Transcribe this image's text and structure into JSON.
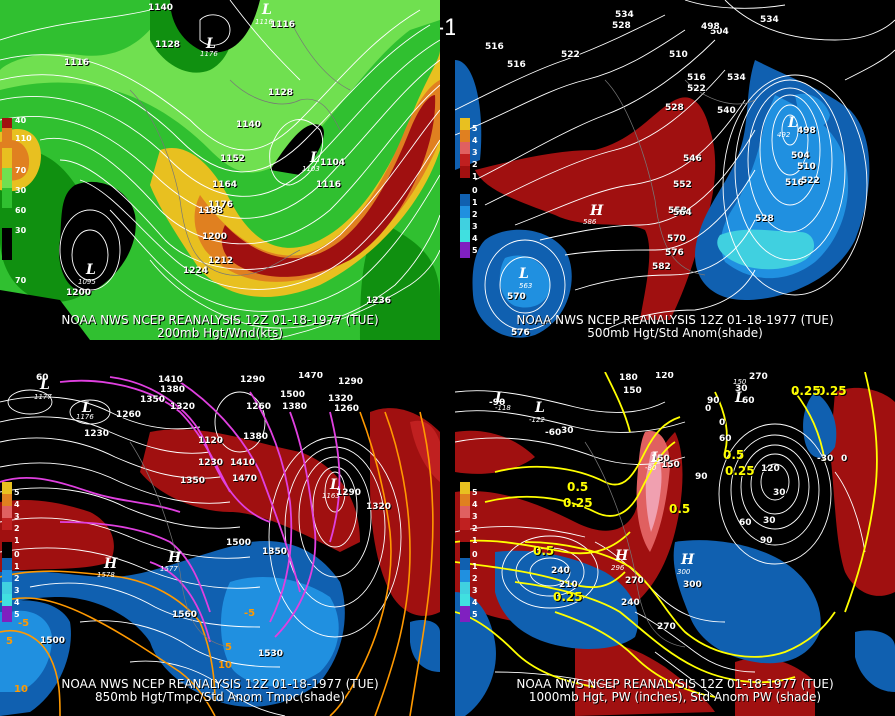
{
  "title": "12Z 01-18-1977 (TUE)",
  "colors": {
    "background": "#000000",
    "green_dark": "#109010",
    "green_mid": "#30c030",
    "green_light": "#70e050",
    "yellow": "#e8c020",
    "orange": "#e08020",
    "red": "#a01010",
    "blue_dark": "#1060b0",
    "blue_mid": "#2090e0",
    "cyan": "#40d0e0",
    "magenta_contour": "#e040e0",
    "yellow_contour": "#ffff00",
    "orange_contour": "#ff9900"
  },
  "panels": [
    {
      "id": "200mb",
      "footer_line1": "NOAA NWS NCEP REANALYSIS 12Z 01-18-1977 (TUE)",
      "footer_line2": "200mb Hgt/Wnd(kts)",
      "colorbar_labels": [
        "40",
        "110",
        "70",
        "30",
        "60",
        "30",
        "70"
      ],
      "height_labels": [
        "1140",
        "1116",
        "1128",
        "1116",
        "1128",
        "1140",
        "1152",
        "1164",
        "1176",
        "1188",
        "1200",
        "1212",
        "1224",
        "1104",
        "1116",
        "1200",
        "1236"
      ],
      "symbols": [
        {
          "type": "L",
          "value": "1116"
        },
        {
          "type": "L",
          "value": "1176"
        },
        {
          "type": "L",
          "value": "1095"
        },
        {
          "type": "L",
          "value": "1103"
        }
      ]
    },
    {
      "id": "500mb",
      "footer_line1": "NOAA NWS NCEP REANALYSIS 12Z 01-18-1977 (TUE)",
      "footer_line2": "500mb Hgt/Std Anom(shade)",
      "colorbar_labels": [
        "5",
        "4",
        "3",
        "2",
        "1",
        "0",
        "1",
        "2",
        "3",
        "4",
        "5"
      ],
      "height_labels": [
        "534",
        "528",
        "516",
        "522",
        "516",
        "534",
        "504",
        "498",
        "534",
        "510",
        "516",
        "522",
        "528",
        "540",
        "546",
        "552",
        "558",
        "564",
        "570",
        "576",
        "582",
        "498",
        "504",
        "510",
        "516",
        "522",
        "528",
        "570",
        "576"
      ],
      "symbols": [
        {
          "type": "L",
          "value": "492"
        },
        {
          "type": "H",
          "value": "586"
        },
        {
          "type": "L",
          "value": "563"
        }
      ]
    },
    {
      "id": "850mb",
      "footer_line1": "NOAA NWS NCEP REANALYSIS 12Z 01-18-1977 (TUE)",
      "footer_line2": "850mb Hgt/Tmpc/Std Anom Tmpc(shade)",
      "colorbar_labels": [
        "5",
        "4",
        "3",
        "2",
        "1",
        "0",
        "1",
        "2",
        "3",
        "4",
        "5"
      ],
      "height_labels": [
        "60",
        "1410",
        "1290",
        "1470",
        "1380",
        "1350",
        "1320",
        "1260",
        "1230",
        "1120",
        "1260",
        "1380",
        "1230",
        "1410",
        "1470",
        "1350",
        "1500",
        "1380",
        "1290",
        "1260",
        "1320",
        "1290",
        "1350",
        "1500",
        "1560",
        "1500",
        "1530",
        "1320"
      ],
      "temp_labels": [
        "-5",
        "5",
        "10",
        "-5",
        "5",
        "10"
      ],
      "symbols": [
        {
          "type": "L",
          "value": "1177"
        },
        {
          "type": "L",
          "value": "1176"
        },
        {
          "type": "L",
          "value": "1163"
        },
        {
          "type": "H",
          "value": "1578"
        },
        {
          "type": "H",
          "value": "1577"
        }
      ]
    },
    {
      "id": "1000mb",
      "footer_line1": "NOAA NWS NCEP REANALYSIS 12Z 01-18-1977 (TUE)",
      "footer_line2": "1000mb Hgt, PW (inches), Std Anom PW (shade)",
      "colorbar_labels": [
        "5",
        "4",
        "3",
        "2",
        "1",
        "0",
        "1",
        "2",
        "3",
        "4",
        "5"
      ],
      "height_labels": [
        "180",
        "120",
        "-90",
        "150",
        "270",
        "-60",
        "30",
        "0",
        "90",
        "60",
        "30",
        "0",
        "150",
        "60",
        "90",
        "120",
        "30",
        "30",
        "60",
        "90",
        "240",
        "210",
        "270",
        "240",
        "270",
        "300",
        "150",
        "-30",
        "0"
      ],
      "pw_labels": [
        "0.5",
        "0.25",
        "0.25",
        "0.5",
        "0.25",
        "0.5",
        "0.25",
        "0.5",
        "0.25"
      ],
      "symbols": [
        {
          "type": "L",
          "value": "-118"
        },
        {
          "type": "L",
          "value": "-122"
        },
        {
          "type": "L",
          "value": "-80"
        },
        {
          "type": "L",
          "value": "150"
        },
        {
          "type": "H",
          "value": "296"
        },
        {
          "type": "H",
          "value": "300"
        }
      ]
    }
  ]
}
